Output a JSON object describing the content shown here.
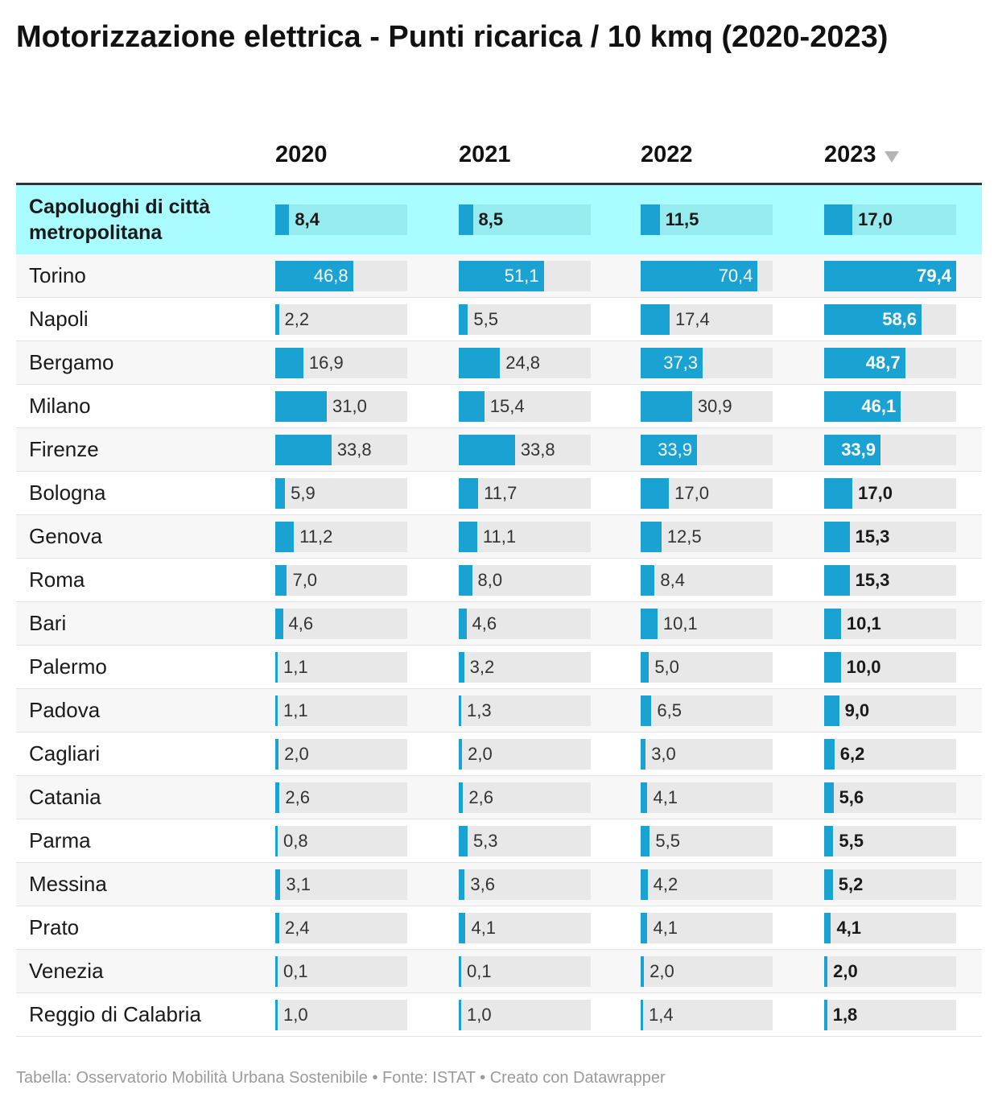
{
  "title": "Motorizzazione elettrica - Punti ricarica / 10 kmq (2020-2023)",
  "footer": "Tabella: Osservatorio Mobilità Urbana Sostenibile • Fonte: ISTAT • Creato con Datawrapper",
  "colors": {
    "bar": "#1aa2d3",
    "track": "#e8e8e8",
    "highlight_row": "#a9fcff",
    "highlight_track": "#95ebee"
  },
  "chart_data": {
    "type": "table",
    "title": "Motorizzazione elettrica - Punti ricarica / 10 kmq (2020-2023)",
    "columns": [
      "2020",
      "2021",
      "2022",
      "2023"
    ],
    "sorted_by": "2023",
    "sort_order": "descending",
    "max_value": 79.4,
    "rows": [
      {
        "name": "Capoluoghi di città metropolitana",
        "highlight": true,
        "values": [
          8.4,
          8.5,
          11.5,
          17.0
        ],
        "labels": [
          "8,4",
          "8,5",
          "11,5",
          "17,0"
        ]
      },
      {
        "name": "Torino",
        "values": [
          46.8,
          51.1,
          70.4,
          79.4
        ],
        "labels": [
          "46,8",
          "51,1",
          "70,4",
          "79,4"
        ]
      },
      {
        "name": "Napoli",
        "values": [
          2.2,
          5.5,
          17.4,
          58.6
        ],
        "labels": [
          "2,2",
          "5,5",
          "17,4",
          "58,6"
        ]
      },
      {
        "name": "Bergamo",
        "values": [
          16.9,
          24.8,
          37.3,
          48.7
        ],
        "labels": [
          "16,9",
          "24,8",
          "37,3",
          "48,7"
        ]
      },
      {
        "name": "Milano",
        "values": [
          31.0,
          15.4,
          30.9,
          46.1
        ],
        "labels": [
          "31,0",
          "15,4",
          "30,9",
          "46,1"
        ]
      },
      {
        "name": "Firenze",
        "values": [
          33.8,
          33.8,
          33.9,
          33.9
        ],
        "labels": [
          "33,8",
          "33,8",
          "33,9",
          "33,9"
        ]
      },
      {
        "name": "Bologna",
        "values": [
          5.9,
          11.7,
          17.0,
          17.0
        ],
        "labels": [
          "5,9",
          "11,7",
          "17,0",
          "17,0"
        ]
      },
      {
        "name": "Genova",
        "values": [
          11.2,
          11.1,
          12.5,
          15.3
        ],
        "labels": [
          "11,2",
          "11,1",
          "12,5",
          "15,3"
        ]
      },
      {
        "name": "Roma",
        "values": [
          7.0,
          8.0,
          8.4,
          15.3
        ],
        "labels": [
          "7,0",
          "8,0",
          "8,4",
          "15,3"
        ]
      },
      {
        "name": "Bari",
        "values": [
          4.6,
          4.6,
          10.1,
          10.1
        ],
        "labels": [
          "4,6",
          "4,6",
          "10,1",
          "10,1"
        ]
      },
      {
        "name": "Palermo",
        "values": [
          1.1,
          3.2,
          5.0,
          10.0
        ],
        "labels": [
          "1,1",
          "3,2",
          "5,0",
          "10,0"
        ]
      },
      {
        "name": "Padova",
        "values": [
          1.1,
          1.3,
          6.5,
          9.0
        ],
        "labels": [
          "1,1",
          "1,3",
          "6,5",
          "9,0"
        ]
      },
      {
        "name": "Cagliari",
        "values": [
          2.0,
          2.0,
          3.0,
          6.2
        ],
        "labels": [
          "2,0",
          "2,0",
          "3,0",
          "6,2"
        ]
      },
      {
        "name": "Catania",
        "values": [
          2.6,
          2.6,
          4.1,
          5.6
        ],
        "labels": [
          "2,6",
          "2,6",
          "4,1",
          "5,6"
        ]
      },
      {
        "name": "Parma",
        "values": [
          0.8,
          5.3,
          5.5,
          5.5
        ],
        "labels": [
          "0,8",
          "5,3",
          "5,5",
          "5,5"
        ]
      },
      {
        "name": "Messina",
        "values": [
          3.1,
          3.6,
          4.2,
          5.2
        ],
        "labels": [
          "3,1",
          "3,6",
          "4,2",
          "5,2"
        ]
      },
      {
        "name": "Prato",
        "values": [
          2.4,
          4.1,
          4.1,
          4.1
        ],
        "labels": [
          "2,4",
          "4,1",
          "4,1",
          "4,1"
        ]
      },
      {
        "name": "Venezia",
        "values": [
          0.1,
          0.1,
          2.0,
          2.0
        ],
        "labels": [
          "0,1",
          "0,1",
          "2,0",
          "2,0"
        ]
      },
      {
        "name": "Reggio di Calabria",
        "values": [
          1.0,
          1.0,
          1.4,
          1.8
        ],
        "labels": [
          "1,0",
          "1,0",
          "1,4",
          "1,8"
        ]
      }
    ]
  }
}
